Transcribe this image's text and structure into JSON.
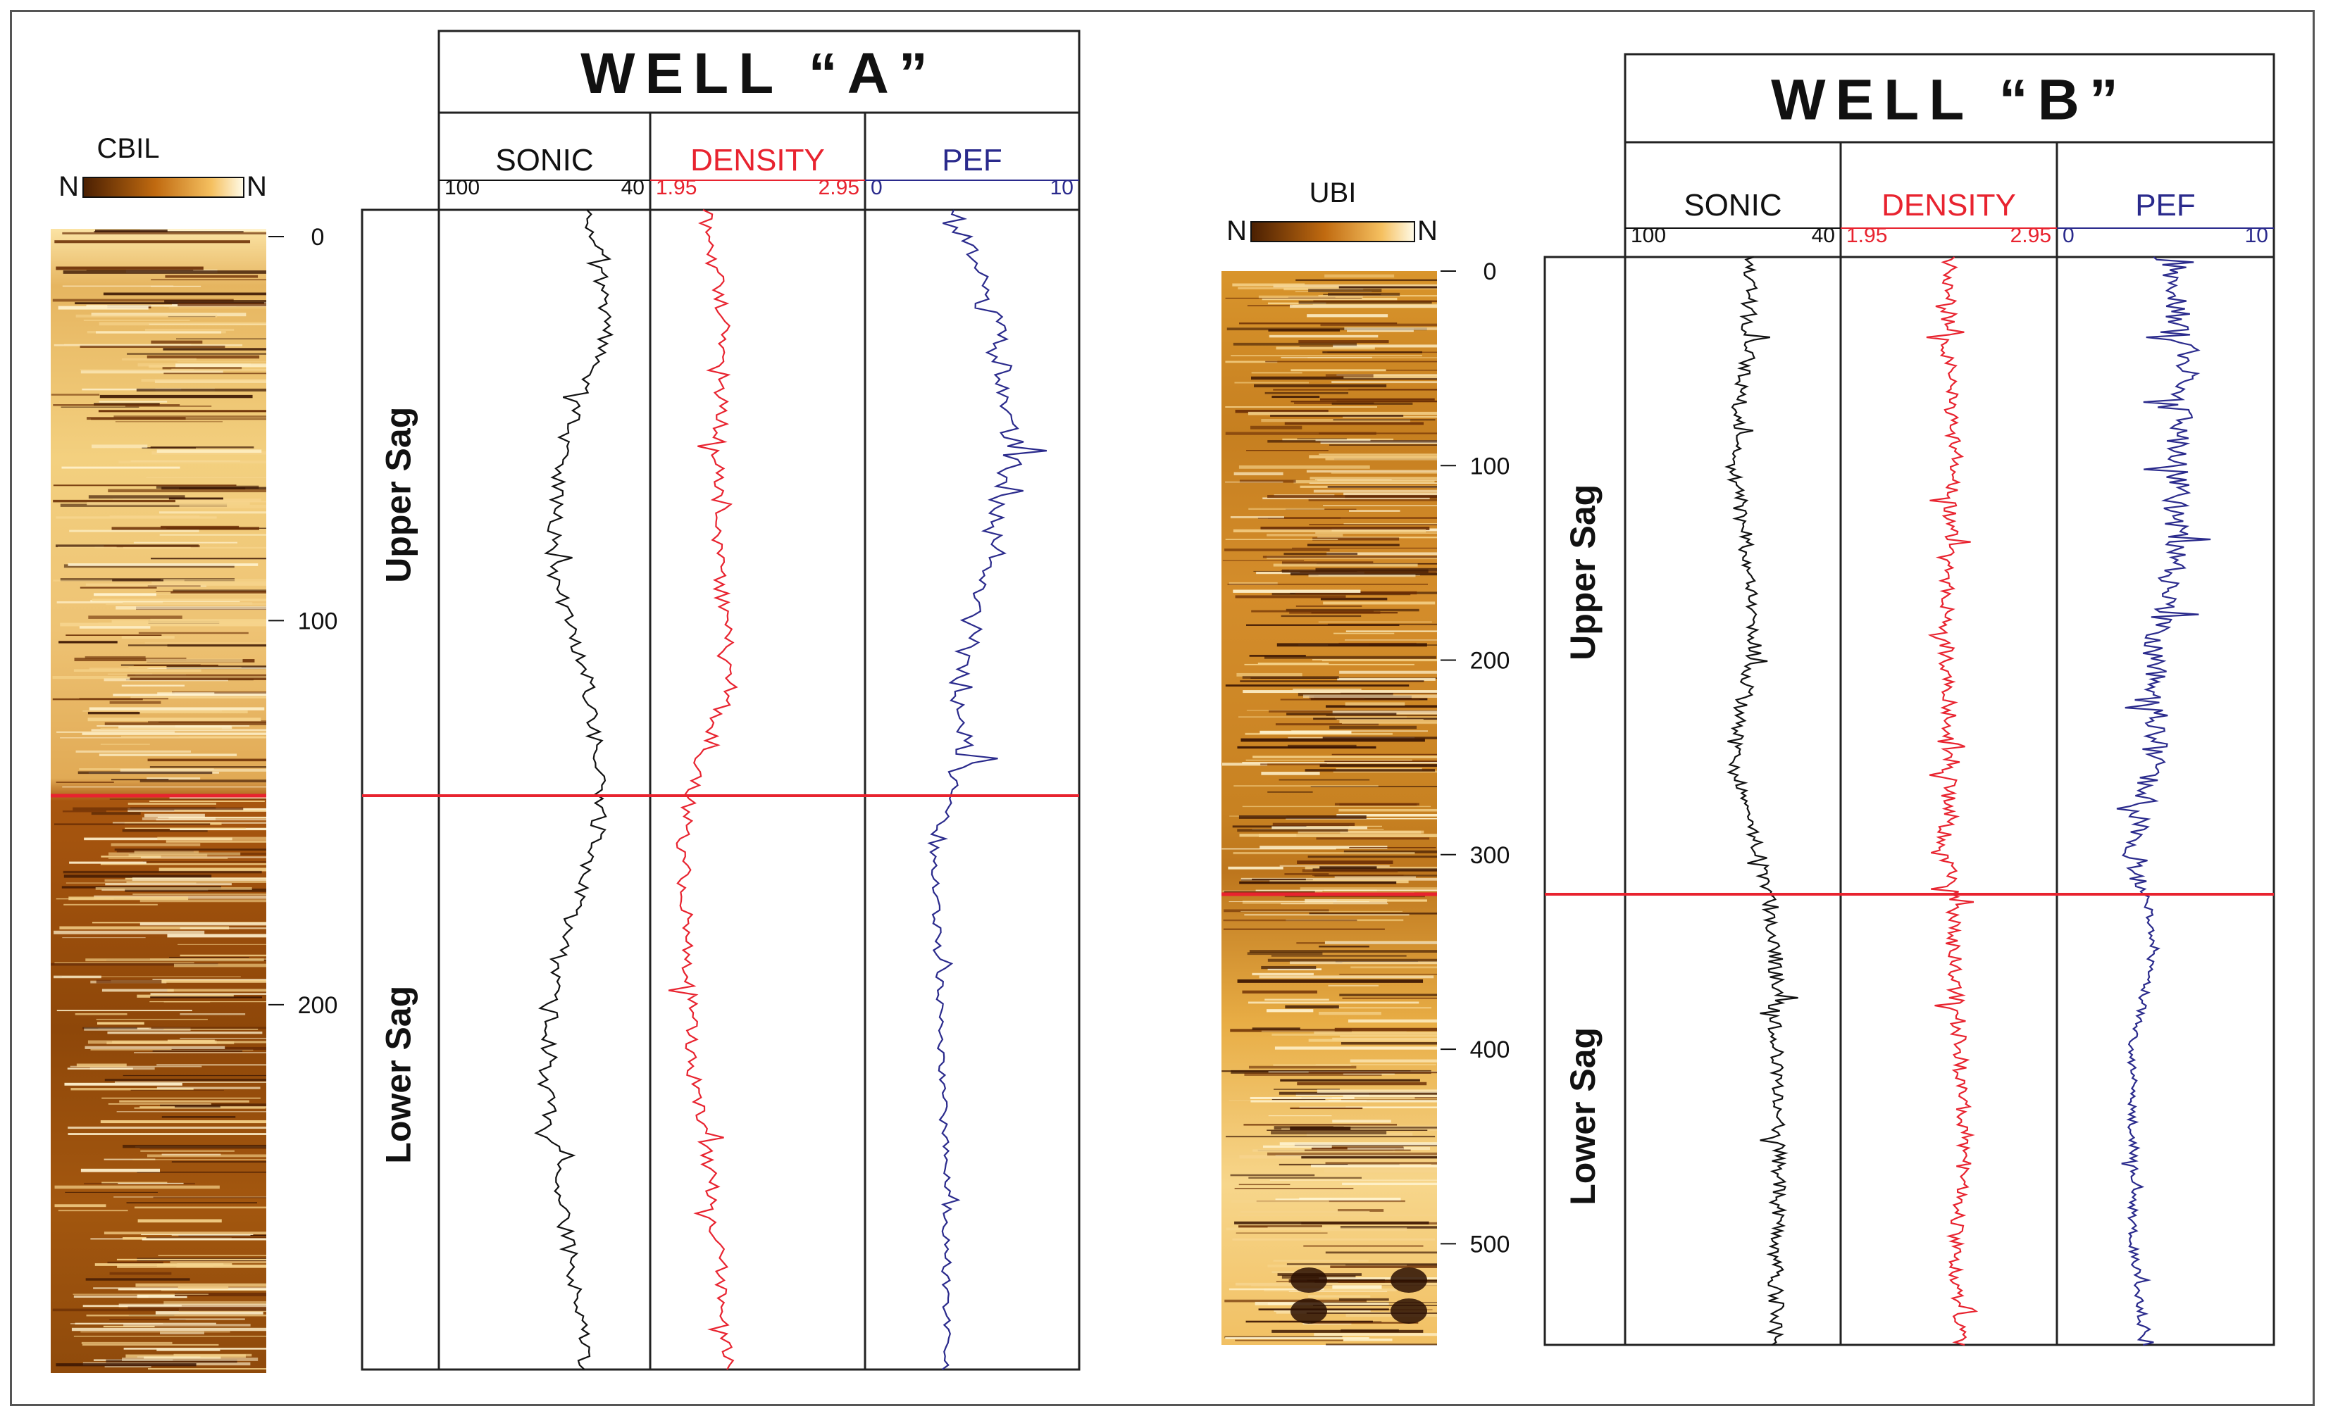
{
  "colors": {
    "sonic": "#111111",
    "density": "#e8232f",
    "pef": "#2a2a8c",
    "boundary": "#e8232f",
    "frame": "#222222",
    "image_dark": "#4a1f02",
    "image_mid": "#b5650f",
    "image_light": "#fff6d8"
  },
  "chart_data": [
    {
      "type": "line",
      "title": "WELL “A”",
      "image_log": {
        "name": "CBIL",
        "scale_left": "N",
        "scale_right": "N",
        "depth_ticks": [
          "0",
          "100",
          "200"
        ],
        "depth_values": [
          0,
          100,
          200
        ]
      },
      "depth_range": [
        0,
        295
      ],
      "boundary_depth": 145,
      "zones": [
        {
          "label": "Upper Sag",
          "from": 0,
          "to": 145
        },
        {
          "label": "Lower Sag",
          "from": 145,
          "to": 295
        }
      ],
      "tracks": [
        {
          "name": "SONIC",
          "min_label": "100",
          "max_label": "40",
          "range": [
            100,
            40
          ],
          "color_key": "sonic"
        },
        {
          "name": "DENSITY",
          "min_label": "1.95",
          "max_label": "2.95",
          "range": [
            1.95,
            2.95
          ],
          "color_key": "density"
        },
        {
          "name": "PEF",
          "min_label": "0",
          "max_label": "10",
          "range": [
            0,
            10
          ],
          "color_key": "pef"
        }
      ],
      "series": [
        {
          "name": "SONIC",
          "depth": [
            0,
            30,
            60,
            90,
            120,
            145,
            160,
            190,
            220,
            250,
            280,
            295
          ],
          "values": [
            57,
            52,
            65,
            68,
            58,
            54,
            55,
            66,
            70,
            66,
            60,
            58
          ]
        },
        {
          "name": "DENSITY",
          "depth": [
            0,
            30,
            60,
            90,
            120,
            145,
            160,
            190,
            220,
            250,
            280,
            295
          ],
          "values": [
            2.2,
            2.3,
            2.27,
            2.27,
            2.33,
            2.15,
            2.1,
            2.12,
            2.15,
            2.24,
            2.3,
            2.33
          ]
        },
        {
          "name": "PEF",
          "depth": [
            0,
            30,
            60,
            90,
            120,
            145,
            160,
            190,
            220,
            250,
            280,
            295
          ],
          "values": [
            4.0,
            6.0,
            7.0,
            5.5,
            4.5,
            4.5,
            3.2,
            3.4,
            3.6,
            3.8,
            3.8,
            3.8
          ]
        }
      ]
    },
    {
      "type": "line",
      "title": "WELL “B”",
      "image_log": {
        "name": "UBI",
        "scale_left": "N",
        "scale_right": "N",
        "depth_ticks": [
          "0",
          "100",
          "200",
          "300",
          "400",
          "500"
        ],
        "depth_values": [
          0,
          100,
          200,
          300,
          400,
          500
        ]
      },
      "depth_range": [
        0,
        552
      ],
      "boundary_depth": 320,
      "zones": [
        {
          "label": "Upper Sag",
          "from": 0,
          "to": 320
        },
        {
          "label": "Lower Sag",
          "from": 320,
          "to": 552
        }
      ],
      "tracks": [
        {
          "name": "SONIC",
          "min_label": "100",
          "max_label": "40",
          "range": [
            100,
            40
          ],
          "color_key": "sonic"
        },
        {
          "name": "DENSITY",
          "min_label": "1.95",
          "max_label": "2.95",
          "range": [
            1.95,
            2.95
          ],
          "color_key": "density"
        },
        {
          "name": "PEF",
          "min_label": "0",
          "max_label": "10",
          "range": [
            0,
            10
          ],
          "color_key": "pef"
        }
      ],
      "series": [
        {
          "name": "SONIC",
          "depth": [
            0,
            50,
            100,
            150,
            200,
            250,
            300,
            320,
            350,
            400,
            450,
            500,
            552
          ],
          "values": [
            65,
            66,
            70,
            66,
            64,
            70,
            63,
            60,
            58,
            58,
            57,
            58,
            58
          ]
        },
        {
          "name": "DENSITY",
          "depth": [
            0,
            50,
            100,
            150,
            200,
            250,
            300,
            320,
            350,
            400,
            450,
            500,
            552
          ],
          "values": [
            2.45,
            2.45,
            2.48,
            2.45,
            2.44,
            2.46,
            2.43,
            2.47,
            2.47,
            2.5,
            2.53,
            2.48,
            2.5
          ]
        },
        {
          "name": "PEF",
          "depth": [
            0,
            50,
            100,
            150,
            200,
            250,
            300,
            320,
            350,
            400,
            450,
            500,
            552
          ],
          "values": [
            5.0,
            6.0,
            5.5,
            5.5,
            4.5,
            4.5,
            3.5,
            4.0,
            4.5,
            3.5,
            3.5,
            3.5,
            4.0
          ]
        }
      ]
    }
  ]
}
